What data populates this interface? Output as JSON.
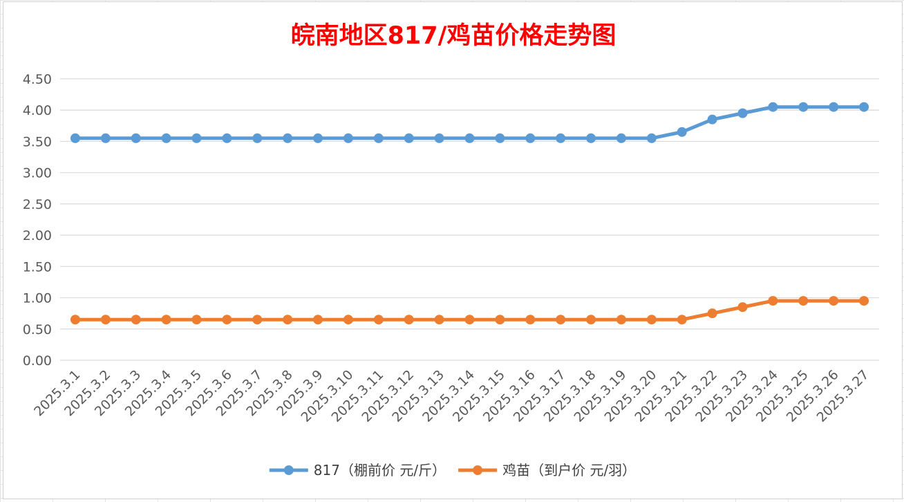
{
  "chart_data": {
    "type": "line",
    "title": "皖南地区817/鸡苗价格走势图",
    "xlabel": "",
    "ylabel": "",
    "ylim": [
      0,
      4.5
    ],
    "y_ticks": [
      "0.00",
      "0.50",
      "1.00",
      "1.50",
      "2.00",
      "2.50",
      "3.00",
      "3.50",
      "4.00",
      "4.50"
    ],
    "categories": [
      "2025.3.1",
      "2025.3.2",
      "2025.3.3",
      "2025.3.4",
      "2025.3.5",
      "2025.3.6",
      "2025.3.7",
      "2025.3.8",
      "2025.3.9",
      "2025.3.10",
      "2025.3.11",
      "2025.3.12",
      "2025.3.13",
      "2025.3.14",
      "2025.3.15",
      "2025.3.16",
      "2025.3.17",
      "2025.3.18",
      "2025.3.19",
      "2025.3.20",
      "2025.3.21",
      "2025.3.22",
      "2025.3.23",
      "2025.3.24",
      "2025.3.25",
      "2025.3.26",
      "2025.3.27"
    ],
    "series": [
      {
        "name": "817（棚前价 元/斤）",
        "color": "#5b9bd5",
        "values": [
          3.55,
          3.55,
          3.55,
          3.55,
          3.55,
          3.55,
          3.55,
          3.55,
          3.55,
          3.55,
          3.55,
          3.55,
          3.55,
          3.55,
          3.55,
          3.55,
          3.55,
          3.55,
          3.55,
          3.55,
          3.65,
          3.85,
          3.95,
          4.05,
          4.05,
          4.05,
          4.05
        ]
      },
      {
        "name": "鸡苗（到户价 元/羽）",
        "color": "#ed7d31",
        "values": [
          0.65,
          0.65,
          0.65,
          0.65,
          0.65,
          0.65,
          0.65,
          0.65,
          0.65,
          0.65,
          0.65,
          0.65,
          0.65,
          0.65,
          0.65,
          0.65,
          0.65,
          0.65,
          0.65,
          0.65,
          0.65,
          0.75,
          0.85,
          0.95,
          0.95,
          0.95,
          0.95
        ]
      }
    ],
    "grid": true,
    "legend_position": "bottom"
  }
}
